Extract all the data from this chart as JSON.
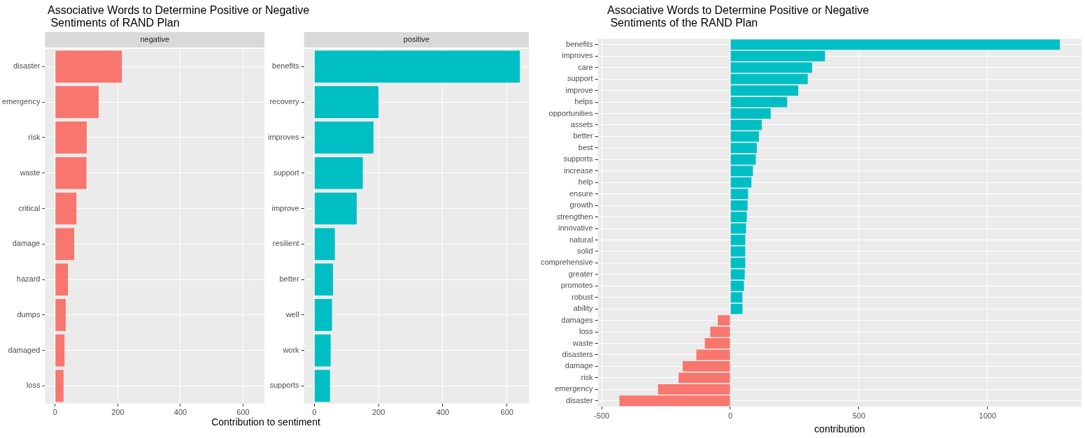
{
  "chart_data": [
    {
      "type": "bar",
      "orientation": "horizontal",
      "title": "Associative Words to Determine Positive or Negative\n Sentiments of RAND Plan",
      "subtitle": "negative",
      "xlabel": "Contribution to sentiment",
      "categories": [
        "disaster",
        "emergency",
        "risk",
        "waste",
        "critical",
        "damage",
        "hazard",
        "dumps",
        "damaged",
        "loss"
      ],
      "values": [
        213,
        139,
        101,
        100,
        68,
        61,
        41,
        34,
        30,
        27
      ],
      "color": "#f8766d",
      "xlim": [
        -32,
        668
      ],
      "xticks": [
        0,
        200,
        400,
        600
      ],
      "grid": true
    },
    {
      "type": "bar",
      "orientation": "horizontal",
      "subtitle": "positive",
      "categories": [
        "benefits",
        "recovery",
        "improves",
        "support",
        "improve",
        "resilient",
        "better",
        "well",
        "work",
        "supports"
      ],
      "values": [
        640,
        200,
        184,
        151,
        132,
        64,
        58,
        55,
        51,
        49
      ],
      "color": "#00bfc4",
      "xlim": [
        -32,
        668
      ],
      "xticks": [
        0,
        200,
        400,
        600
      ],
      "grid": true
    },
    {
      "type": "bar",
      "orientation": "horizontal",
      "title": "Associative Words to Determine Positive or Negative\n Sentiments of the RAND Plan",
      "xlabel": "contribution",
      "categories": [
        "benefits",
        "improves",
        "care",
        "support",
        "improve",
        "helps",
        "opportunities",
        "assets",
        "better",
        "best",
        "supports",
        "increase",
        "help",
        "ensure",
        "growth",
        "strengthen",
        "innovative",
        "natural",
        "solid",
        "comprehensive",
        "greater",
        "promotes",
        "robust",
        "ability",
        "damages",
        "loss",
        "waste",
        "disasters",
        "damage",
        "risk",
        "emergency",
        "disaster"
      ],
      "values": [
        1281,
        368,
        318,
        301,
        264,
        221,
        157,
        122,
        111,
        103,
        99,
        88,
        82,
        69,
        67,
        64,
        61,
        58,
        58,
        58,
        56,
        53,
        47,
        47,
        -49,
        -78,
        -99,
        -132,
        -185,
        -201,
        -281,
        -431
      ],
      "colors": [
        "#00bfc4",
        "#00bfc4",
        "#00bfc4",
        "#00bfc4",
        "#00bfc4",
        "#00bfc4",
        "#00bfc4",
        "#00bfc4",
        "#00bfc4",
        "#00bfc4",
        "#00bfc4",
        "#00bfc4",
        "#00bfc4",
        "#00bfc4",
        "#00bfc4",
        "#00bfc4",
        "#00bfc4",
        "#00bfc4",
        "#00bfc4",
        "#00bfc4",
        "#00bfc4",
        "#00bfc4",
        "#00bfc4",
        "#00bfc4",
        "#f8766d",
        "#f8766d",
        "#f8766d",
        "#f8766d",
        "#f8766d",
        "#f8766d",
        "#f8766d",
        "#f8766d"
      ],
      "xlim": [
        -515,
        1365
      ],
      "xticks": [
        -500,
        0,
        500,
        1000
      ],
      "grid": true
    }
  ]
}
